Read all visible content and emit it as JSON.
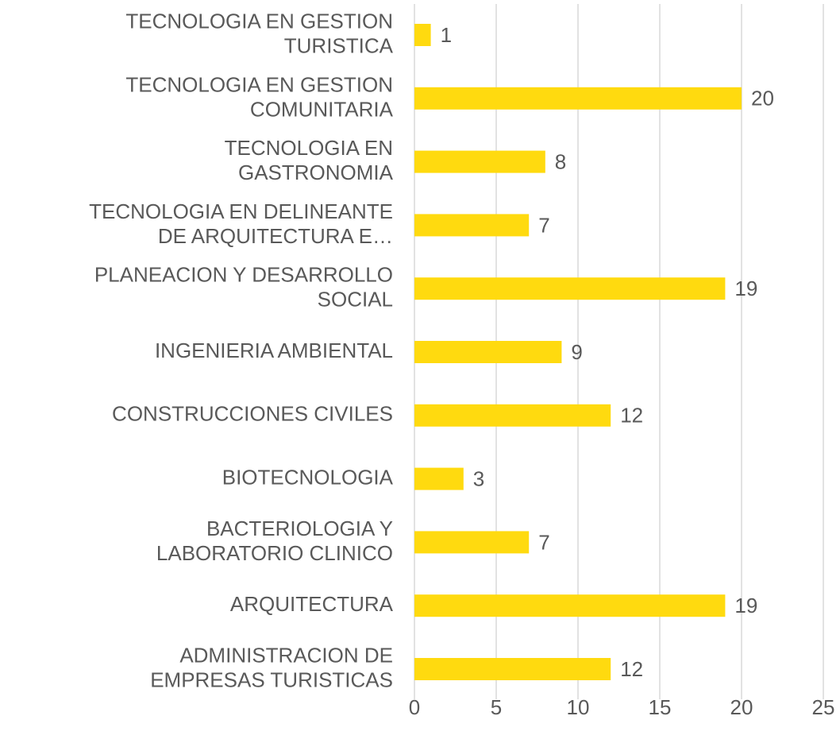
{
  "chart_data": {
    "type": "bar",
    "orientation": "horizontal",
    "categories": [
      "TECNOLOGIA EN GESTION\nTURISTICA",
      "TECNOLOGIA EN GESTION\nCOMUNITARIA",
      "TECNOLOGIA EN\nGASTRONOMIA",
      "TECNOLOGIA EN DELINEANTE\nDE ARQUITECTURA E…",
      "PLANEACION Y DESARROLLO\nSOCIAL",
      "INGENIERIA AMBIENTAL",
      "CONSTRUCCIONES CIVILES",
      "BIOTECNOLOGIA",
      "BACTERIOLOGIA Y\nLABORATORIO CLINICO",
      "ARQUITECTURA",
      "ADMINISTRACION DE\nEMPRESAS TURISTICAS"
    ],
    "values": [
      1,
      20,
      8,
      7,
      19,
      9,
      12,
      3,
      7,
      19,
      12
    ],
    "color": "#FFDA0F",
    "xlim": [
      0,
      25
    ],
    "xticks": [
      0,
      5,
      10,
      15,
      20,
      25
    ],
    "grid": true
  }
}
